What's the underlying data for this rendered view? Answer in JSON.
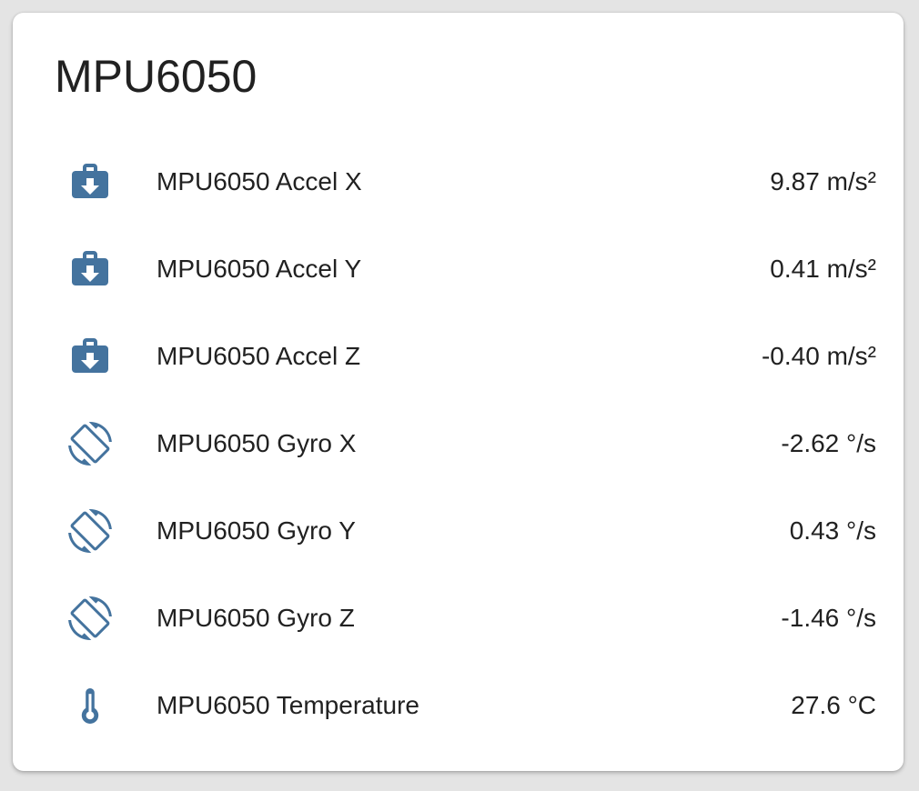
{
  "page": {
    "background_color": "#e4e4e4"
  },
  "card": {
    "title": "MPU6050",
    "background_color": "#ffffff",
    "text_color": "#212121",
    "icon_color": "#44739e",
    "rows": [
      {
        "icon": "briefcase-download-icon",
        "label": "MPU6050 Accel X",
        "value": "9.87 m/s²"
      },
      {
        "icon": "briefcase-download-icon",
        "label": "MPU6050 Accel Y",
        "value": "0.41 m/s²"
      },
      {
        "icon": "briefcase-download-icon",
        "label": "MPU6050 Accel Z",
        "value": "-0.40 m/s²"
      },
      {
        "icon": "screen-rotation-icon",
        "label": "MPU6050 Gyro X",
        "value": "-2.62 °/s"
      },
      {
        "icon": "screen-rotation-icon",
        "label": "MPU6050 Gyro Y",
        "value": "0.43 °/s"
      },
      {
        "icon": "screen-rotation-icon",
        "label": "MPU6050 Gyro Z",
        "value": "-1.46 °/s"
      },
      {
        "icon": "thermometer-icon",
        "label": "MPU6050 Temperature",
        "value": "27.6 °C"
      }
    ]
  }
}
